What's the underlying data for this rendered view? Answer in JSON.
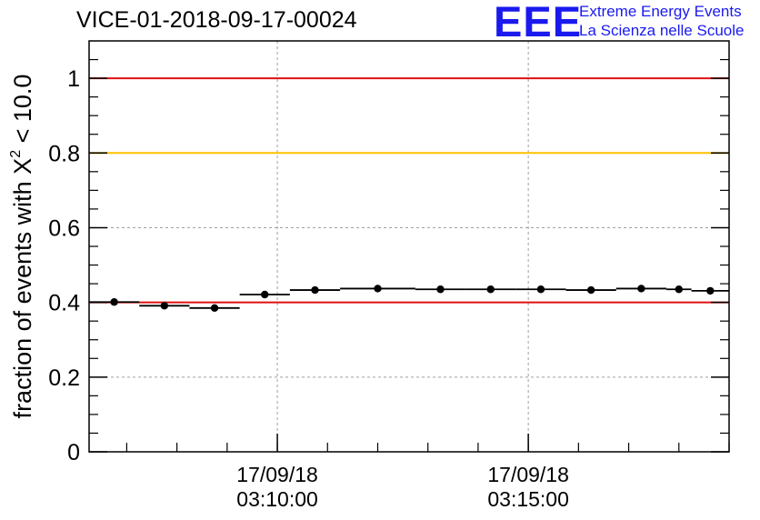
{
  "header": {
    "title": "VICE-01-2018-09-17-00024",
    "logo_mark": "EEE",
    "logo_line1": "Extreme Energy Events",
    "logo_line2": "La Scienza nelle Scuole"
  },
  "colors": {
    "threshold_high": "#e01010",
    "threshold_mid": "#ffc000",
    "threshold_low": "#e01010",
    "points": "#000000",
    "grid": "#a0a0a0",
    "logo": "#1a1aee"
  },
  "chart_data": {
    "type": "scatter",
    "title": "VICE-01-2018-09-17-00024",
    "ylabel_prefix": "fraction of events with ",
    "ylabel_symbol": "X",
    "ylabel_sup": "2",
    "ylabel_suffix": " < 10.0",
    "xlim": [
      "03:06:15",
      "03:19:00"
    ],
    "ylim": [
      0,
      1.1
    ],
    "y_ticks": [
      0,
      0.2,
      0.4,
      0.6,
      0.8,
      1
    ],
    "y_tick_labels": [
      "0",
      "0.2",
      "0.4",
      "0.6",
      "0.8",
      "1"
    ],
    "x_ticks": [
      {
        "time": "03:10:00",
        "date_label": "17/09/18",
        "time_label": "03:10:00"
      },
      {
        "time": "03:15:00",
        "date_label": "17/09/18",
        "time_label": "03:15:00"
      }
    ],
    "grid": true,
    "reference_lines": [
      {
        "y": 1.0,
        "color": "red"
      },
      {
        "y": 0.8,
        "color": "gold"
      },
      {
        "y": 0.4,
        "color": "red"
      }
    ],
    "series": [
      {
        "points": [
          {
            "start": "03:06:15",
            "end": "03:07:15",
            "y": 0.401
          },
          {
            "start": "03:07:15",
            "end": "03:08:15",
            "y": 0.391
          },
          {
            "start": "03:08:15",
            "end": "03:09:15",
            "y": 0.385
          },
          {
            "start": "03:09:15",
            "end": "03:10:15",
            "y": 0.421
          },
          {
            "start": "03:10:15",
            "end": "03:11:15",
            "y": 0.433
          },
          {
            "start": "03:11:15",
            "end": "03:12:45",
            "y": 0.437
          },
          {
            "start": "03:12:45",
            "end": "03:13:45",
            "y": 0.435
          },
          {
            "start": "03:13:45",
            "end": "03:14:45",
            "y": 0.435
          },
          {
            "start": "03:14:45",
            "end": "03:15:45",
            "y": 0.435
          },
          {
            "start": "03:15:45",
            "end": "03:16:45",
            "y": 0.433
          },
          {
            "start": "03:16:45",
            "end": "03:17:45",
            "y": 0.437
          },
          {
            "start": "03:17:45",
            "end": "03:18:15",
            "y": 0.435
          },
          {
            "start": "03:18:15",
            "end": "03:19:00",
            "y": 0.431
          }
        ]
      }
    ]
  }
}
